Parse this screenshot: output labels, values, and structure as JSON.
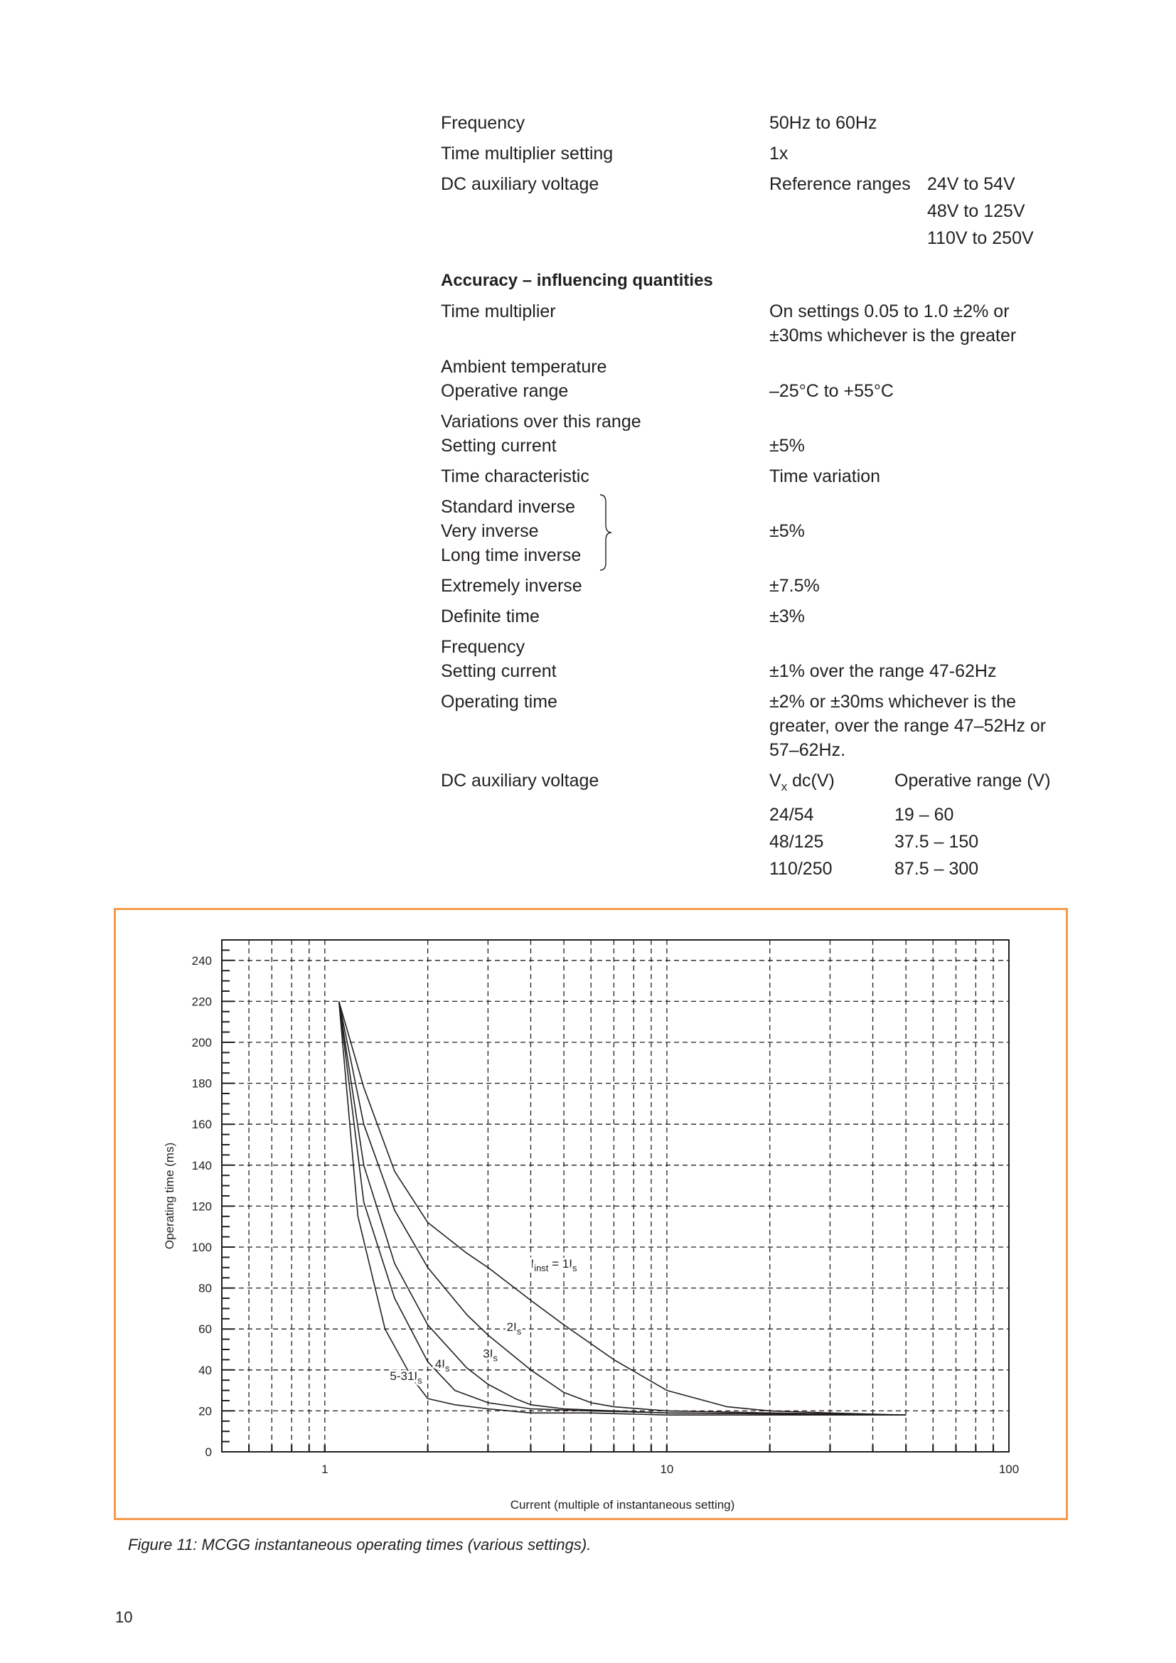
{
  "specs": {
    "frequency": {
      "label": "Frequency",
      "value": "50Hz to 60Hz"
    },
    "tms": {
      "label": "Time multiplier setting",
      "value": "1x"
    },
    "dc_aux": {
      "label": "DC auxiliary voltage",
      "ref_label": "Reference ranges",
      "ranges": [
        "24V to 54V",
        "48V to 125V",
        "110V to 250V"
      ]
    },
    "accuracy_heading": "Accuracy – influencing quantities",
    "time_multiplier": {
      "label": "Time multiplier",
      "value": "On settings 0.05 to 1.0 ±2% or",
      "value2": "±30ms whichever is the greater"
    },
    "ambient": {
      "label": "Ambient temperature",
      "sub_label": "Operative range",
      "value": "–25°C to +55°C"
    },
    "variations": {
      "label": "Variations over this range",
      "sub_label": "Setting current",
      "value": "±5%"
    },
    "time_char": {
      "label": "Time characteristic",
      "value": "Time variation"
    },
    "inverse_group": {
      "items": [
        "Standard inverse",
        "Very inverse",
        "Long time inverse"
      ],
      "value": "±5%"
    },
    "extremely": {
      "label": "Extremely inverse",
      "value": "±7.5%"
    },
    "definite": {
      "label": "Definite time",
      "value": "±3%"
    },
    "freq2": {
      "label": "Frequency",
      "sub_label": "Setting current",
      "value": "±1% over the range 47-62Hz"
    },
    "op_time": {
      "label": "Operating time",
      "lines": [
        "±2% or ±30ms whichever is the",
        "greater, over the range 47–52Hz or",
        "57–62Hz."
      ]
    },
    "dc_aux2": {
      "label": "DC auxiliary voltage",
      "col1_head": "V",
      "col1_sub": "x",
      "col1_tail": " dc(V)",
      "col2_head": "Operative range (V)",
      "rows": [
        [
          "24/54",
          "19 – 60"
        ],
        [
          "48/125",
          "37.5 – 150"
        ],
        [
          "110/250",
          "87.5 – 300"
        ]
      ]
    }
  },
  "chart_data": {
    "type": "line",
    "xlabel": "Current (multiple of instantaneous setting)",
    "ylabel": "Operating time (ms)",
    "x_scale": "log",
    "xlim": [
      0.5,
      100
    ],
    "ylim": [
      0,
      250
    ],
    "x_ticks": [
      1,
      10,
      100
    ],
    "y_ticks": [
      0,
      20,
      40,
      60,
      80,
      100,
      120,
      140,
      160,
      180,
      200,
      220,
      240
    ],
    "grid": true,
    "series": [
      {
        "name": "Iinst = 1Is",
        "x": [
          1.1,
          1.3,
          1.6,
          2.0,
          2.6,
          3.0,
          4.0,
          5.0,
          7.0,
          10,
          15,
          20,
          30,
          50
        ],
        "y": [
          220,
          178,
          137,
          112,
          97,
          90,
          74,
          62,
          45,
          30,
          22,
          20,
          19,
          18
        ]
      },
      {
        "name": "2Is",
        "x": [
          1.1,
          1.3,
          1.6,
          2.0,
          2.6,
          3.0,
          4.0,
          5.0,
          6.0,
          7.0,
          10,
          20,
          50
        ],
        "y": [
          220,
          160,
          118,
          90,
          67,
          57,
          40,
          29,
          24,
          22,
          20,
          19,
          18
        ]
      },
      {
        "name": "3Is",
        "x": [
          1.1,
          1.3,
          1.6,
          2.0,
          2.6,
          3.0,
          3.6,
          4.0,
          5.0,
          7.0,
          10,
          50
        ],
        "y": [
          220,
          140,
          92,
          62,
          41,
          33,
          26,
          23,
          21,
          20,
          19,
          18
        ]
      },
      {
        "name": "4Is",
        "x": [
          1.1,
          1.3,
          1.6,
          2.0,
          2.4,
          3.0,
          4.0,
          6.0,
          10,
          50
        ],
        "y": [
          220,
          122,
          75,
          44,
          30,
          24,
          21,
          20,
          19,
          18
        ]
      },
      {
        "name": "5-31Is",
        "x": [
          1.1,
          1.25,
          1.5,
          1.8,
          2.0,
          2.4,
          3.0,
          4.0,
          6.0,
          10,
          50
        ],
        "y": [
          220,
          115,
          60,
          36,
          26,
          23,
          21,
          19,
          19,
          18,
          18
        ]
      }
    ],
    "annotations": [
      {
        "text_main": "I",
        "text_sub": "inst",
        "text_mid": " = 1I",
        "text_sub2": "s",
        "x": 4.0,
        "y": 90
      },
      {
        "text_main": "2I",
        "text_sub": "s",
        "x": 3.4,
        "y": 59
      },
      {
        "text_main": "3I",
        "text_sub": "s",
        "x": 2.9,
        "y": 46
      },
      {
        "text_main": "4I",
        "text_sub": "s",
        "x": 2.1,
        "y": 41
      },
      {
        "text_main": "5-31I",
        "text_sub": "s",
        "x": 1.55,
        "y": 35
      }
    ]
  },
  "figure_caption": "Figure 11:  MCGG instantaneous operating times (various settings).",
  "page_number": "10"
}
